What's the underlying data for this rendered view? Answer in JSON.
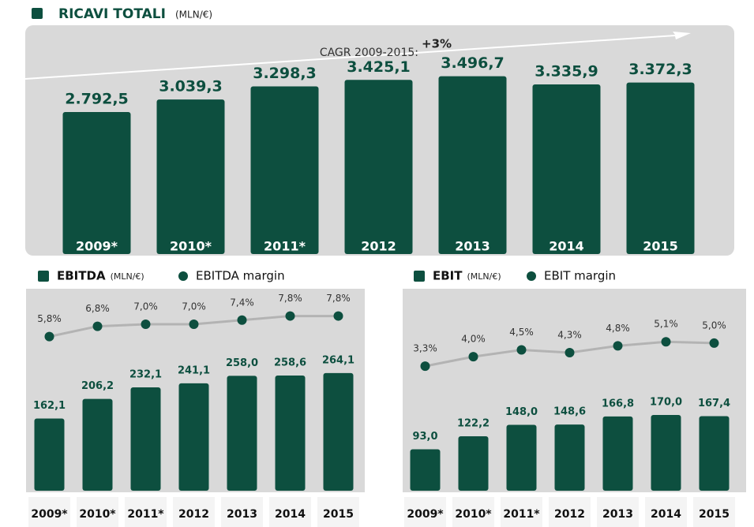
{
  "chart_data": [
    {
      "type": "bar",
      "title": "RICAVI TOTALI",
      "unit": "(MLN/€)",
      "annotation": {
        "label": "CAGR 2009-2015:",
        "value": "+3%"
      },
      "categories": [
        "2009*",
        "2010*",
        "2011*",
        "2012",
        "2013",
        "2014",
        "2015"
      ],
      "values": [
        2792.5,
        3039.3,
        3298.3,
        3425.1,
        3496.7,
        3335.9,
        3372.3
      ],
      "value_labels": [
        "2.792,5",
        "3.039,3",
        "3.298,3",
        "3.425,1",
        "3.496,7",
        "3.335,9",
        "3.372,3"
      ],
      "color": "#0d4f3f",
      "ylim": [
        0,
        4500
      ]
    },
    {
      "type": "combo",
      "unit": "(MLN/€)",
      "categories": [
        "2009*",
        "2010*",
        "2011*",
        "2012",
        "2013",
        "2014",
        "2015"
      ],
      "series": [
        {
          "name": "EBITDA",
          "color": "#0d4f3f",
          "values": [
            162.1,
            206.2,
            232.1,
            241.1,
            258.0,
            258.6,
            264.1
          ],
          "value_labels": [
            "162,1",
            "206,2",
            "232,1",
            "241,1",
            "258,0",
            "258,6",
            "264,1"
          ]
        },
        {
          "name": "EBITDA margin",
          "color": "#0d4f3f",
          "line_color": "#b3b3b3",
          "axis": "y2",
          "values": [
            5.8,
            6.8,
            7.0,
            7.0,
            7.4,
            7.8,
            7.8
          ],
          "value_labels": [
            "5,8%",
            "6,8%",
            "7,0%",
            "7,0%",
            "7,4%",
            "7,8%",
            "7,8%"
          ]
        }
      ],
      "ylim": [
        0,
        450
      ],
      "y2lim": [
        -9.2,
        10.3
      ]
    },
    {
      "type": "combo",
      "unit": "(MLN/€)",
      "categories": [
        "2009*",
        "2010*",
        "2011*",
        "2012",
        "2013",
        "2014",
        "2015"
      ],
      "series": [
        {
          "name": "EBIT",
          "color": "#0d4f3f",
          "values": [
            93.0,
            122.2,
            148.0,
            148.6,
            166.8,
            170.0,
            167.4
          ],
          "value_labels": [
            "93,0",
            "122,2",
            "148,0",
            "148,6",
            "166,8",
            "170,0",
            "167,4"
          ]
        },
        {
          "name": "EBIT margin",
          "color": "#0d4f3f",
          "line_color": "#b3b3b3",
          "axis": "y2",
          "values": [
            3.3,
            4.0,
            4.5,
            4.3,
            4.8,
            5.1,
            5.0
          ],
          "value_labels": [
            "3,3%",
            "4,0%",
            "4,5%",
            "4,3%",
            "4,8%",
            "5,1%",
            "5,0%"
          ]
        }
      ],
      "ylim": [
        0,
        450
      ],
      "y2lim": [
        -5.9,
        8.9
      ]
    }
  ]
}
